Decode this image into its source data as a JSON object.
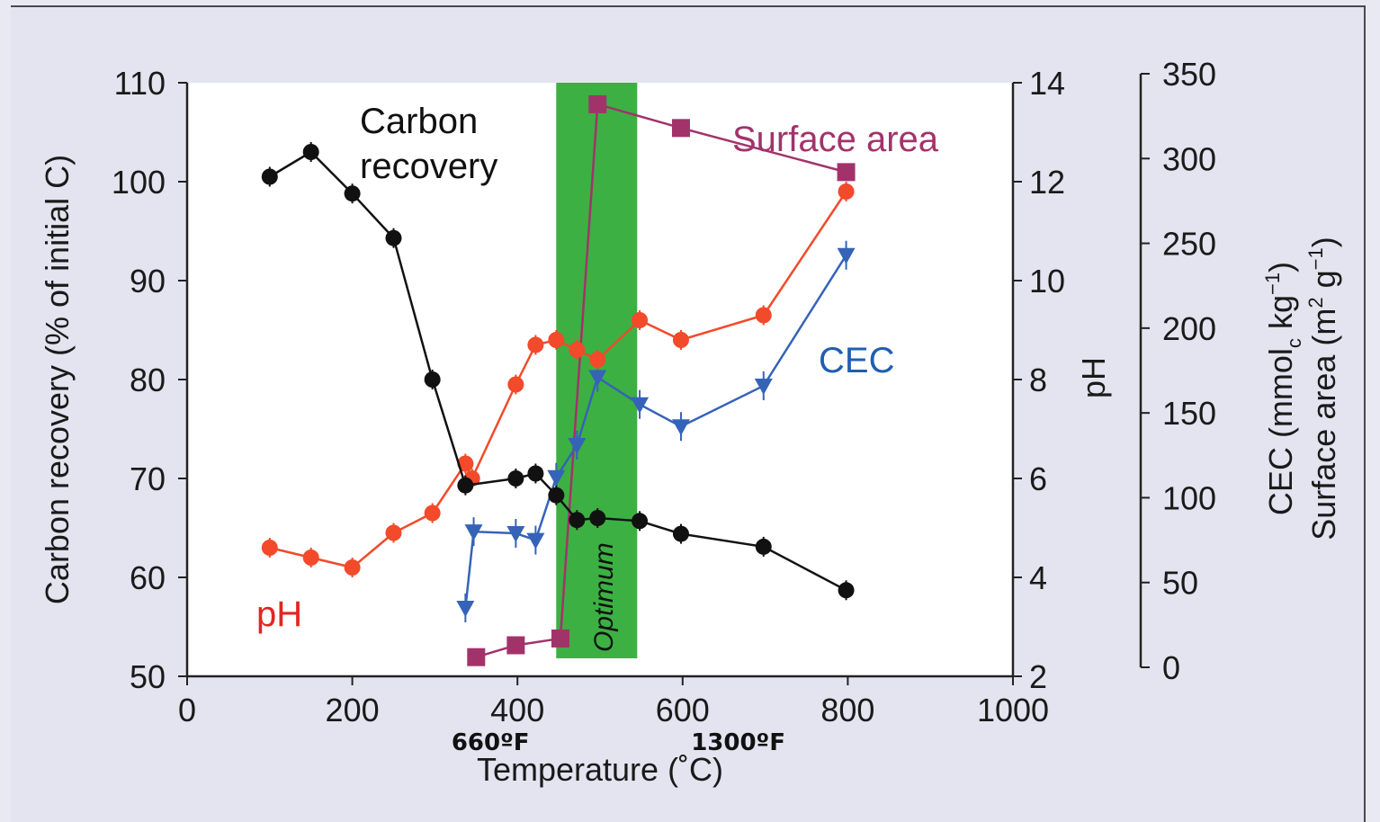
{
  "colors": {
    "carbon": "#111111",
    "ph": "#f24a2a",
    "cec": "#3563b8",
    "surface": "#a2336a",
    "optimum": "#3cb043",
    "ph_label": "#e3261f",
    "cec_label": "#1f5fb0",
    "surface_label": "#a2336a"
  },
  "chart_data": {
    "type": "line",
    "x_axis": {
      "label": "Temperature (˚C)",
      "range": [
        0,
        1000
      ],
      "ticks": [
        0,
        200,
        400,
        600,
        800,
        1000
      ],
      "extra_labels": [
        {
          "text": "660ºF",
          "at": 400
        },
        {
          "text": "1300ºF",
          "at": 700
        }
      ]
    },
    "left_axis": {
      "label": "Carbon recovery (% of initial C)",
      "range": [
        50,
        110
      ],
      "ticks": [
        50,
        60,
        70,
        80,
        90,
        100,
        110
      ]
    },
    "ph_axis": {
      "label": "pH",
      "range": [
        2,
        14
      ],
      "ticks": [
        2,
        4,
        6,
        8,
        10,
        12,
        14
      ]
    },
    "right_axis": {
      "label_line1": "CEC (mmol",
      "label_line1_sub": "c",
      "label_line1_end": " kg",
      "label_line1_sup": "−1",
      "label_line1_close": ")",
      "label_line2": "Surface area (m",
      "label_line2_sup1": "2",
      "label_line2_mid": " g",
      "label_line2_sup2": "−1",
      "label_line2_close": ")",
      "range": [
        0,
        350
      ],
      "ticks": [
        0,
        50,
        100,
        150,
        200,
        250,
        300,
        350
      ]
    },
    "optimum_band": {
      "label": "Optimum",
      "x_range": [
        460,
        545
      ]
    },
    "series": [
      {
        "name": "Carbon recovery",
        "name_line1": "Carbon",
        "name_line2": "recovery",
        "axis": "left",
        "marker": "circle",
        "points": [
          [
            100,
            100.5
          ],
          [
            150,
            103.0
          ],
          [
            200,
            98.8
          ],
          [
            250,
            94.3
          ],
          [
            297,
            80.0
          ],
          [
            337,
            69.3
          ],
          [
            398,
            70.0
          ],
          [
            422,
            70.5
          ],
          [
            447,
            68.3
          ],
          [
            472,
            65.8
          ],
          [
            497,
            66.0
          ],
          [
            548,
            65.7
          ],
          [
            598,
            64.4
          ],
          [
            698,
            63.1
          ],
          [
            798,
            58.7
          ]
        ]
      },
      {
        "name": "pH",
        "axis": "ph",
        "marker": "circle",
        "points": [
          [
            100,
            4.6
          ],
          [
            150,
            4.4
          ],
          [
            200,
            4.2
          ],
          [
            250,
            4.9
          ],
          [
            297,
            5.3
          ],
          [
            337,
            6.3
          ],
          [
            345,
            6.0
          ],
          [
            398,
            7.9
          ],
          [
            422,
            8.7
          ],
          [
            447,
            8.8
          ],
          [
            472,
            8.6
          ],
          [
            497,
            8.4
          ],
          [
            548,
            9.2
          ],
          [
            598,
            8.8
          ],
          [
            698,
            9.3
          ],
          [
            798,
            11.8
          ]
        ]
      },
      {
        "name": "CEC",
        "axis": "right",
        "marker": "triangle-down",
        "points": [
          [
            337,
            35
          ],
          [
            347,
            80
          ],
          [
            398,
            79
          ],
          [
            422,
            75
          ],
          [
            447,
            112
          ],
          [
            472,
            131
          ],
          [
            497,
            171
          ],
          [
            548,
            155
          ],
          [
            598,
            142
          ],
          [
            698,
            166
          ],
          [
            798,
            243
          ]
        ]
      },
      {
        "name": "Surface area",
        "axis": "right",
        "marker": "square",
        "points": [
          [
            350,
            6
          ],
          [
            398,
            13
          ],
          [
            452,
            17
          ],
          [
            497,
            332
          ],
          [
            598,
            318
          ],
          [
            798,
            292
          ]
        ]
      }
    ],
    "annotations": {
      "carbon_line1": "Carbon",
      "carbon_line2": "recovery",
      "surface": "Surface area",
      "cec": "CEC",
      "ph": "pH"
    }
  }
}
